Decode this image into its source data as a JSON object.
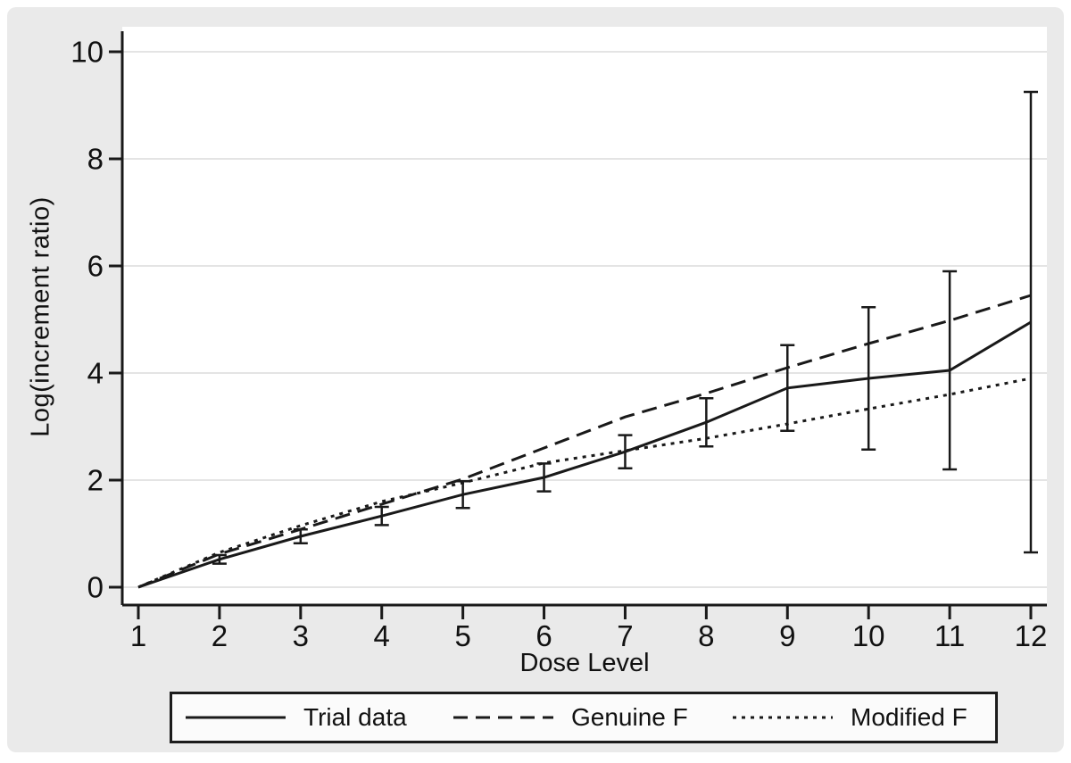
{
  "figure": {
    "canvas_color": "#eaeaea",
    "plot_bg": "#ffffff",
    "grid_color": "#e4e4e4",
    "line_color": "#191919",
    "text_color": "#111111",
    "legend_bg": "#fbfbfb",
    "legend_border": "#1c1c1c"
  },
  "chart_data": {
    "type": "line",
    "title": "",
    "xlabel": "Dose Level",
    "ylabel": "Log(increment ratio)",
    "x": [
      1,
      2,
      3,
      4,
      5,
      6,
      7,
      8,
      9,
      10,
      11,
      12
    ],
    "x_tick_labels": [
      "1",
      "2",
      "3",
      "4",
      "5",
      "6",
      "7",
      "8",
      "9",
      "10",
      "11",
      "12"
    ],
    "y_ticks": [
      0,
      2,
      4,
      6,
      8,
      10
    ],
    "ylim": [
      0,
      10.4
    ],
    "xlim": [
      1,
      12
    ],
    "grid": "horizontal-y",
    "legend_position": "bottom-box",
    "series": [
      {
        "name": "Trial data",
        "style": "solid",
        "values": [
          0,
          0.52,
          0.95,
          1.33,
          1.73,
          2.05,
          2.53,
          3.08,
          3.72,
          3.9,
          4.05,
          4.95
        ],
        "error_bars": [
          0,
          0.08,
          0.13,
          0.17,
          0.25,
          0.26,
          0.31,
          0.45,
          0.8,
          1.33,
          1.85,
          4.3
        ]
      },
      {
        "name": "Genuine F",
        "style": "dashed",
        "values": [
          0,
          0.62,
          1.08,
          1.55,
          2.02,
          2.6,
          3.18,
          3.62,
          4.1,
          4.55,
          4.98,
          5.45
        ]
      },
      {
        "name": "Modified F",
        "style": "dotted",
        "values": [
          0,
          0.65,
          1.15,
          1.6,
          1.95,
          2.32,
          2.55,
          2.78,
          3.05,
          3.33,
          3.6,
          3.9
        ]
      }
    ]
  }
}
